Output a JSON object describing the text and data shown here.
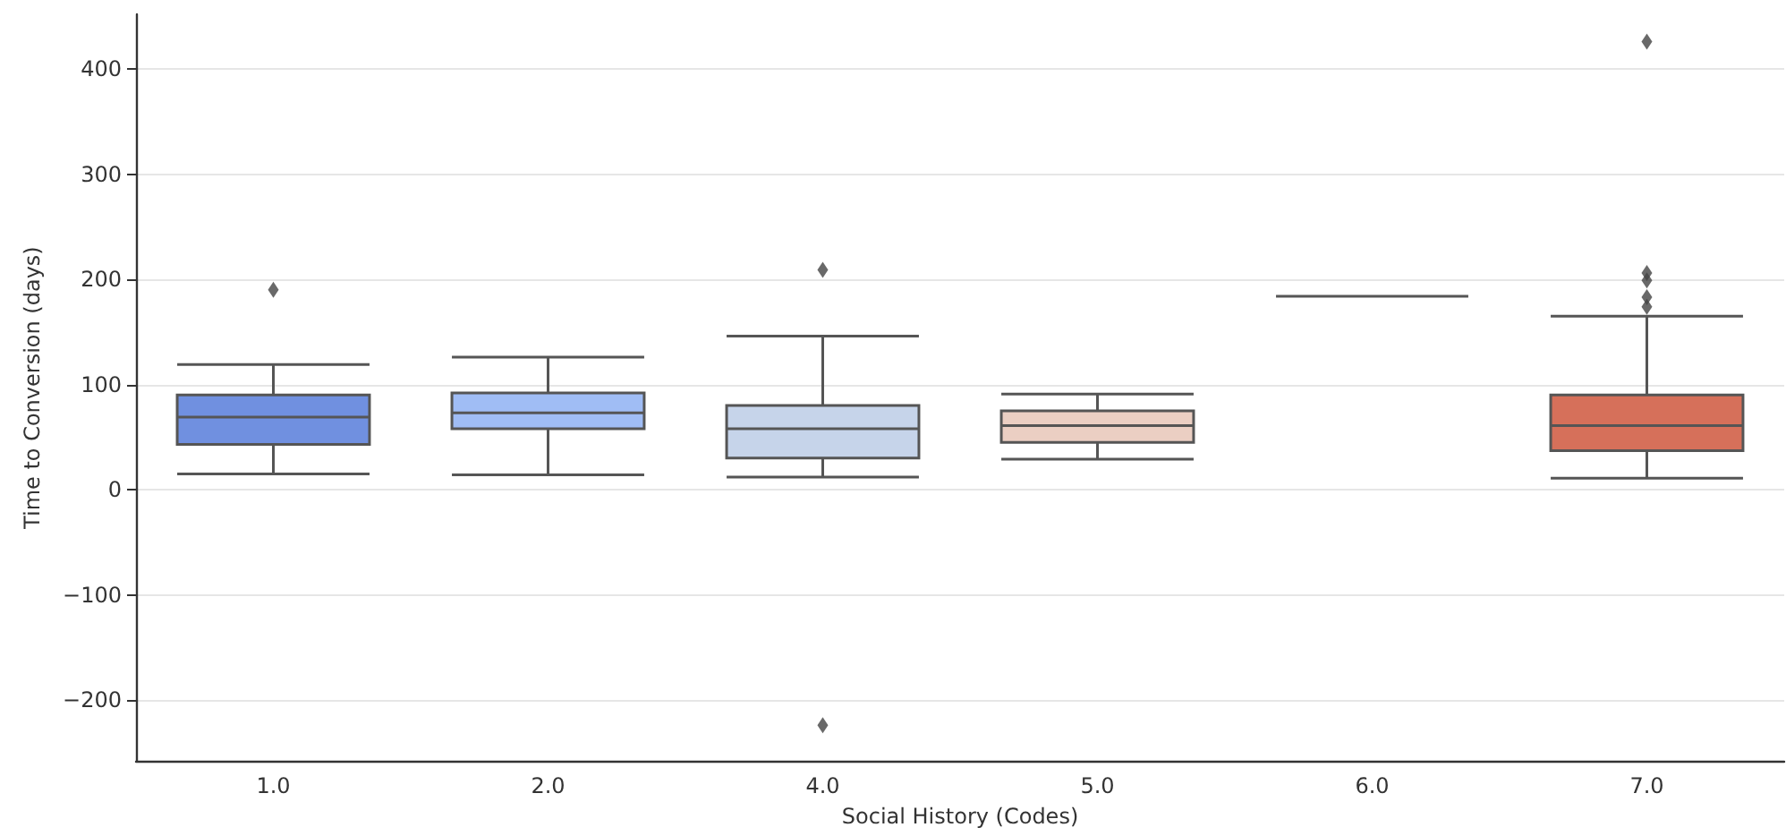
{
  "chart_data": {
    "type": "box",
    "xlabel": "Social History (Codes)",
    "ylabel": "Time to Conversion (days)",
    "categories": [
      "1.0",
      "2.0",
      "4.0",
      "5.0",
      "6.0",
      "7.0"
    ],
    "colors": [
      "#7090e0",
      "#a0bdf5",
      "#c6d4ea",
      "#ebcfc3",
      "#555555",
      "#d6705a"
    ],
    "boxes": [
      {
        "low": 15,
        "q1": 43,
        "median": 69,
        "q3": 90,
        "high": 119,
        "outliers": [
          190
        ]
      },
      {
        "low": 14,
        "q1": 58,
        "median": 73,
        "q3": 92,
        "high": 126
      },
      {
        "low": 12,
        "q1": 30,
        "median": 58,
        "q3": 80,
        "high": 146,
        "outliers": [
          209,
          -224
        ]
      },
      {
        "low": 29,
        "q1": 45,
        "median": 61,
        "q3": 75,
        "high": 91
      },
      {
        "low": 184,
        "q1": 184,
        "median": 184,
        "q3": 184,
        "high": 184
      },
      {
        "low": 11,
        "q1": 37,
        "median": 61,
        "q3": 90,
        "high": 165,
        "outliers": [
          174,
          183,
          199,
          206,
          426
        ]
      }
    ],
    "ylim": [
      -258,
      452
    ],
    "yticks": [
      -200,
      -100,
      0,
      100,
      200,
      300,
      400
    ],
    "grid": "y",
    "marker": "diamond"
  }
}
